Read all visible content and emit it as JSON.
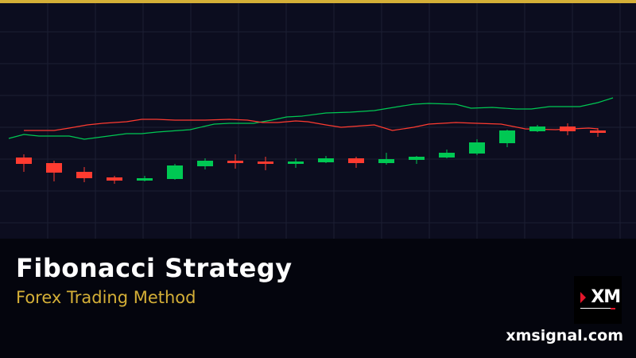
{
  "header": {
    "accent_color": "#d4af37"
  },
  "title": "Fibonacci Strategy",
  "subtitle": "Forex Trading Method",
  "logo": {
    "text": "XM",
    "icon": "xm-logo"
  },
  "website": "xmsignal.com",
  "colors": {
    "up": "#00c853",
    "down": "#ff3b30",
    "background": "#0c0d1f",
    "grid": "#1c1e33"
  },
  "chart_data": {
    "type": "candlestick",
    "grid": true,
    "axes_visible": false,
    "candles": [
      {
        "o": 102,
        "h": 106,
        "l": 84,
        "c": 94
      },
      {
        "o": 95,
        "h": 98,
        "l": 72,
        "c": 83
      },
      {
        "o": 84,
        "h": 90,
        "l": 71,
        "c": 76
      },
      {
        "o": 77,
        "h": 79,
        "l": 69,
        "c": 73
      },
      {
        "o": 73,
        "h": 79,
        "l": 72,
        "c": 76
      },
      {
        "o": 75,
        "h": 94,
        "l": 74,
        "c": 92
      },
      {
        "o": 91,
        "h": 101,
        "l": 87,
        "c": 98
      },
      {
        "o": 98,
        "h": 106,
        "l": 88,
        "c": 95
      },
      {
        "o": 97,
        "h": 103,
        "l": 86,
        "c": 94
      },
      {
        "o": 94,
        "h": 101,
        "l": 89,
        "c": 97
      },
      {
        "o": 96,
        "h": 104,
        "l": 95,
        "c": 101
      },
      {
        "o": 101,
        "h": 103,
        "l": 89,
        "c": 95
      },
      {
        "o": 95,
        "h": 108,
        "l": 93,
        "c": 100
      },
      {
        "o": 99,
        "h": 104,
        "l": 94,
        "c": 103
      },
      {
        "o": 102,
        "h": 112,
        "l": 101,
        "c": 108
      },
      {
        "o": 107,
        "h": 125,
        "l": 105,
        "c": 121
      },
      {
        "o": 120,
        "h": 137,
        "l": 115,
        "c": 136
      },
      {
        "o": 135,
        "h": 143,
        "l": 134,
        "c": 141
      },
      {
        "o": 141,
        "h": 145,
        "l": 130,
        "c": 135
      },
      {
        "o": 136,
        "h": 139,
        "l": 128,
        "c": 133
      }
    ],
    "lines": [
      {
        "color": "#00c853",
        "points": [
          [
            -0.5,
            126
          ],
          [
            0,
            131
          ],
          [
            0.5,
            129
          ],
          [
            1,
            129
          ],
          [
            1.5,
            129
          ],
          [
            2,
            125
          ],
          [
            2.6,
            128
          ],
          [
            3.4,
            132
          ],
          [
            3.9,
            132
          ],
          [
            4.4,
            134
          ],
          [
            5.5,
            137
          ],
          [
            6.3,
            144
          ],
          [
            6.8,
            145
          ],
          [
            7.6,
            145
          ],
          [
            8.2,
            149
          ],
          [
            8.7,
            153
          ],
          [
            9.2,
            154
          ],
          [
            10,
            158
          ],
          [
            10.8,
            159
          ],
          [
            11.6,
            161
          ],
          [
            12.4,
            166
          ],
          [
            12.9,
            169
          ],
          [
            13.4,
            170
          ],
          [
            14.3,
            169
          ],
          [
            14.8,
            164
          ],
          [
            15.5,
            165
          ],
          [
            16.3,
            163
          ],
          [
            16.8,
            163
          ],
          [
            17.4,
            166
          ],
          [
            18.4,
            166
          ],
          [
            19,
            171
          ],
          [
            19.5,
            177
          ]
        ]
      },
      {
        "color": "#ff3b30",
        "points": [
          [
            0,
            136
          ],
          [
            1,
            136
          ],
          [
            1.5,
            139
          ],
          [
            2.1,
            143
          ],
          [
            2.6,
            145
          ],
          [
            3.4,
            147
          ],
          [
            3.9,
            150
          ],
          [
            4.4,
            150
          ],
          [
            5,
            149
          ],
          [
            6,
            149
          ],
          [
            6.8,
            150
          ],
          [
            7.4,
            149
          ],
          [
            7.9,
            146
          ],
          [
            8.4,
            146
          ],
          [
            9,
            148
          ],
          [
            9.4,
            147
          ],
          [
            10,
            143
          ],
          [
            10.5,
            140
          ],
          [
            11.6,
            143
          ],
          [
            12.2,
            136
          ],
          [
            12.9,
            140
          ],
          [
            13.4,
            144
          ],
          [
            14.3,
            146
          ],
          [
            15,
            145
          ],
          [
            15.8,
            144
          ],
          [
            16.6,
            138
          ],
          [
            17.6,
            137
          ],
          [
            18.7,
            139
          ],
          [
            19,
            138
          ]
        ]
      }
    ]
  }
}
